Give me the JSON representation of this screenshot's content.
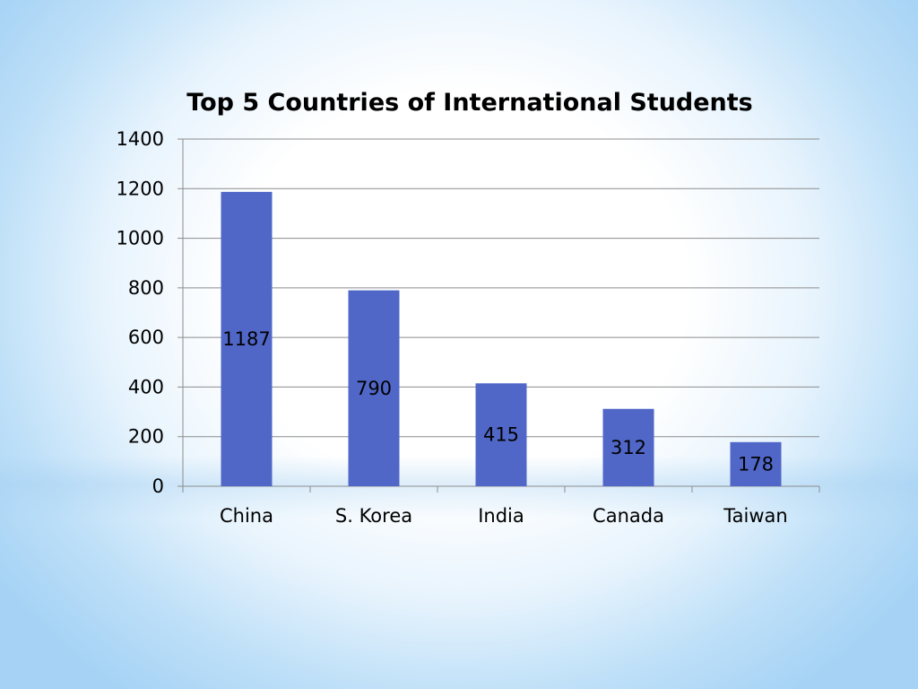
{
  "chart_data": {
    "type": "bar",
    "title": "Top 5 Countries of International Students",
    "categories": [
      "China",
      "S. Korea",
      "India",
      "Canada",
      "Taiwan"
    ],
    "values": [
      1187,
      790,
      415,
      312,
      178
    ],
    "data_labels": [
      "1187",
      "790",
      "415",
      "312",
      "178"
    ],
    "xlabel": "",
    "ylabel": "",
    "ylim": [
      0,
      1400
    ],
    "yticks": [
      0,
      200,
      400,
      600,
      800,
      1000,
      1200,
      1400
    ],
    "ytick_labels": [
      "0",
      "200",
      "400",
      "600",
      "800",
      "1000",
      "1200",
      "1400"
    ],
    "grid": true,
    "legend": "none",
    "bar_color": "#5067C8",
    "gridline_color": "#8c8c8c"
  }
}
